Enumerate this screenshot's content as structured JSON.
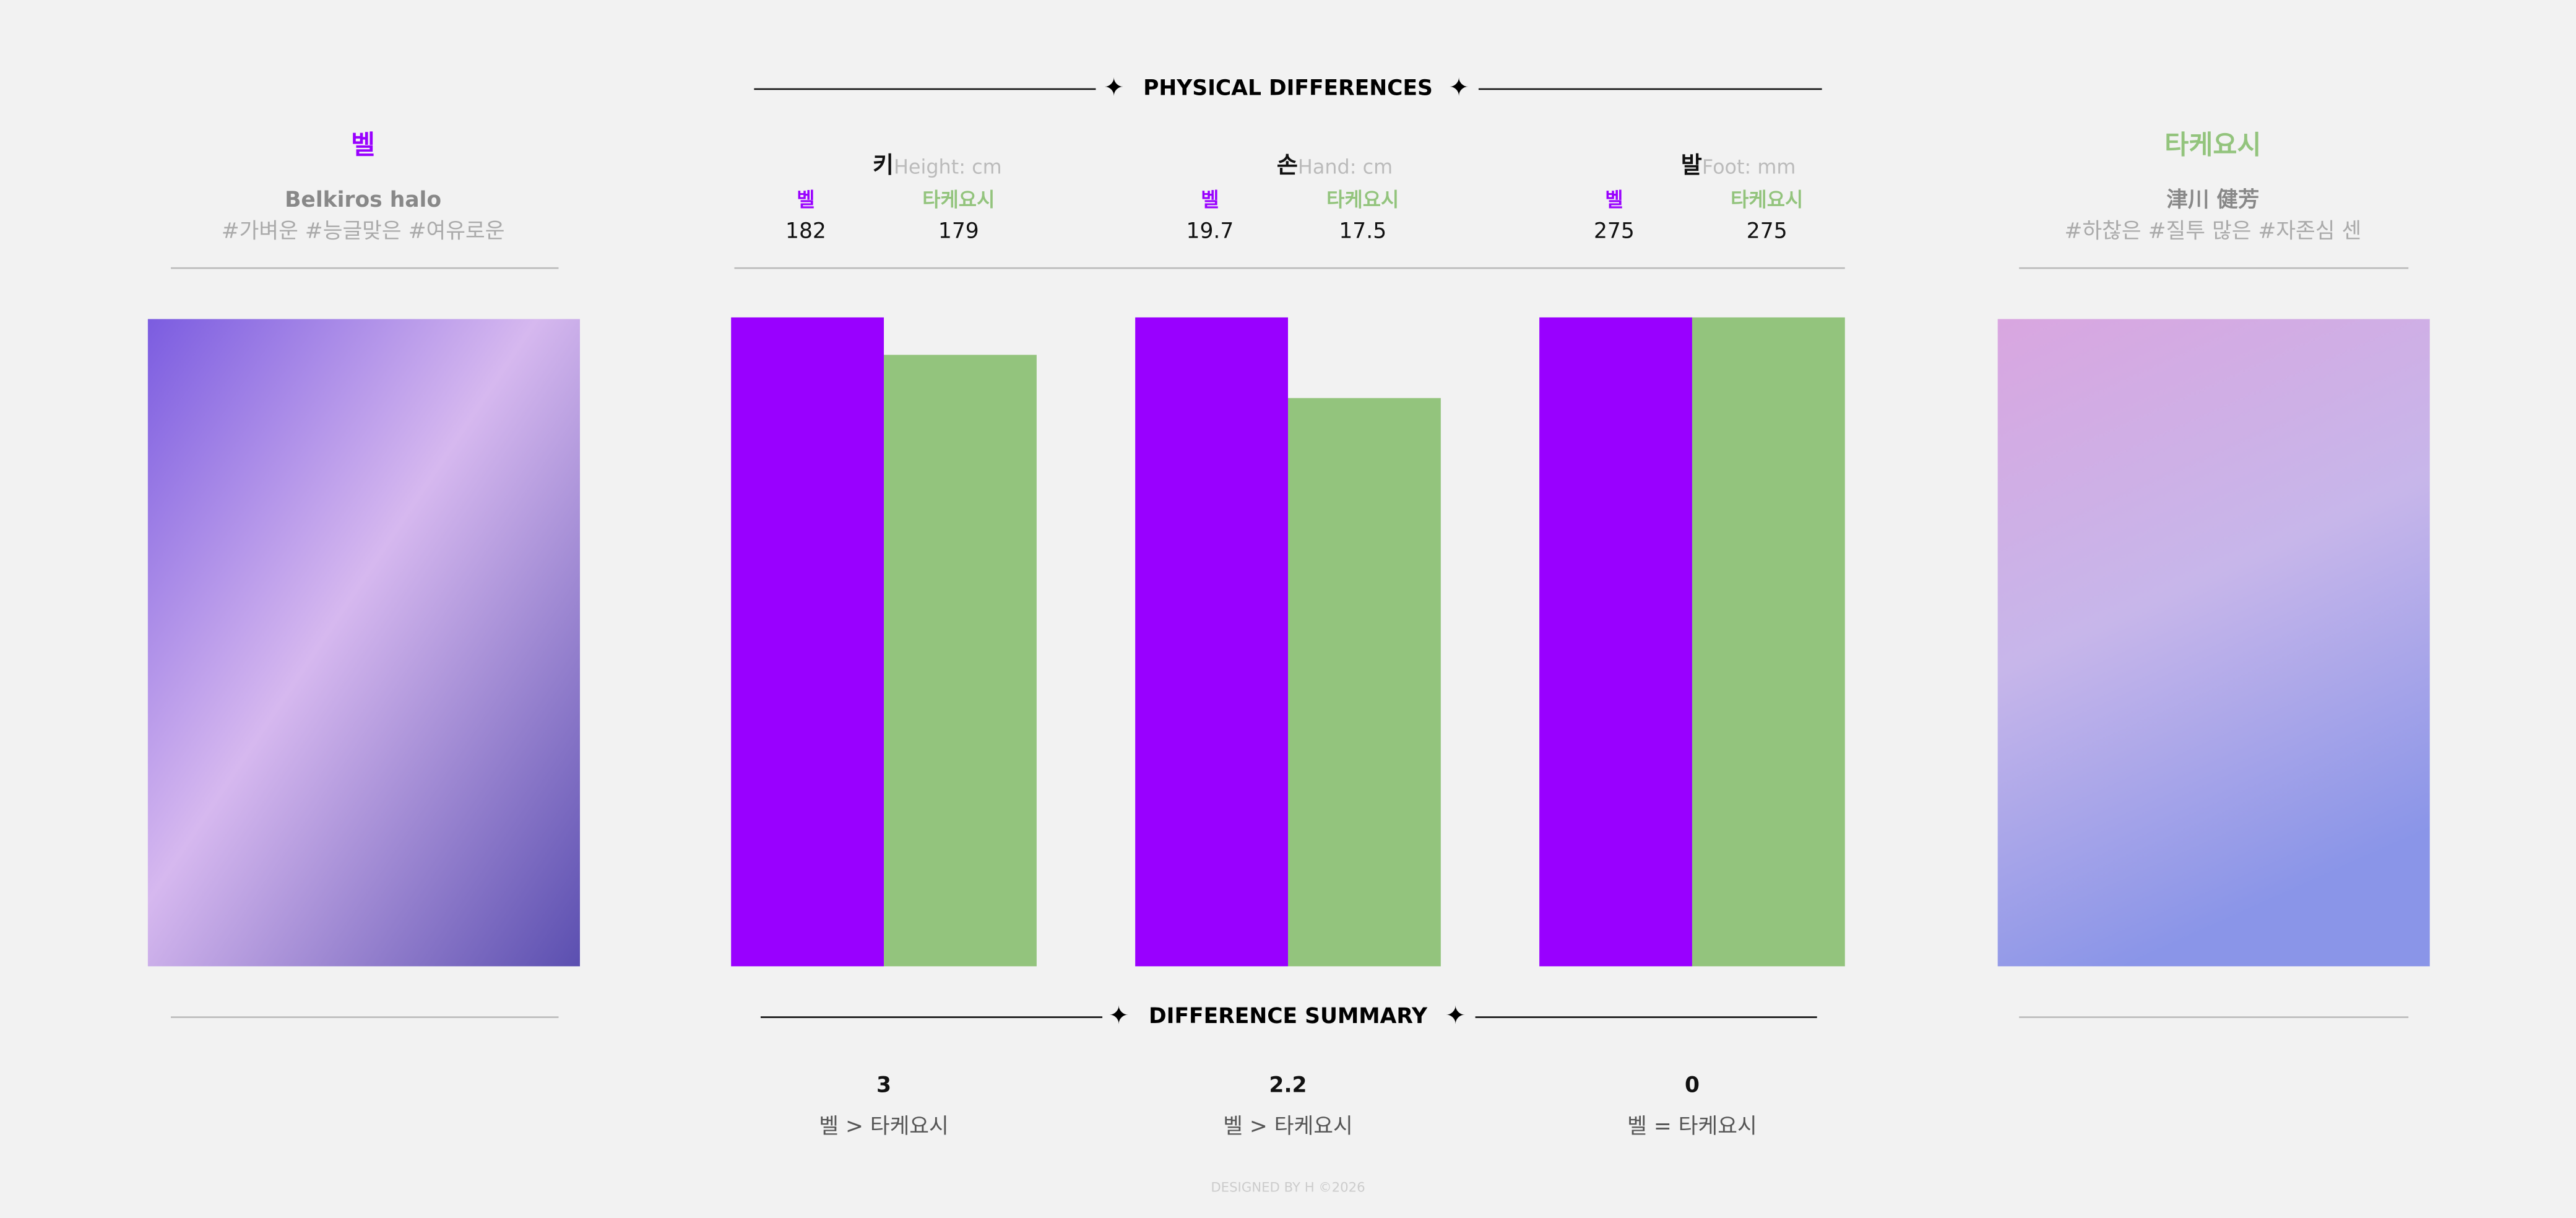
{
  "header": {
    "title": "PHYSICAL DIFFERENCES",
    "summary_title": "DIFFERENCE SUMMARY"
  },
  "left": {
    "name": "벨",
    "subname": "Belkiros halo",
    "tags": "#가벼운 #능글맞은 #여유로운",
    "color": "#9900ff"
  },
  "right": {
    "name": "타케요시",
    "subname": "津川 健芳",
    "tags": "#하찮은 #질투 많은 #자존심 센",
    "color": "#93c47d"
  },
  "chart_data": [
    {
      "type": "bar",
      "title": "키",
      "subtitle": "Height: cm",
      "categories": [
        "벨",
        "타케요시"
      ],
      "values": [
        182,
        179
      ],
      "colors": [
        "#9900ff",
        "#93c47d"
      ],
      "ylim": [
        130,
        182
      ]
    },
    {
      "type": "bar",
      "title": "손",
      "subtitle": "Hand: cm",
      "categories": [
        "벨",
        "타케요시"
      ],
      "values": [
        19.7,
        17.5
      ],
      "colors": [
        "#9900ff",
        "#93c47d"
      ],
      "ylim": [
        2,
        19.7
      ]
    },
    {
      "type": "bar",
      "title": "발",
      "subtitle": "Foot: mm",
      "categories": [
        "벨",
        "타케요시"
      ],
      "values": [
        275,
        275
      ],
      "colors": [
        "#9900ff",
        "#93c47d"
      ],
      "ylim": [
        0,
        275
      ]
    }
  ],
  "summary": [
    {
      "difference": 3,
      "relation": "벨 > 타케요시"
    },
    {
      "difference": 2.2,
      "relation": "벨 > 타케요시"
    },
    {
      "difference": 0,
      "relation": "벨 = 타케요시"
    }
  ],
  "footer": "DESIGNED BY H ©2026"
}
